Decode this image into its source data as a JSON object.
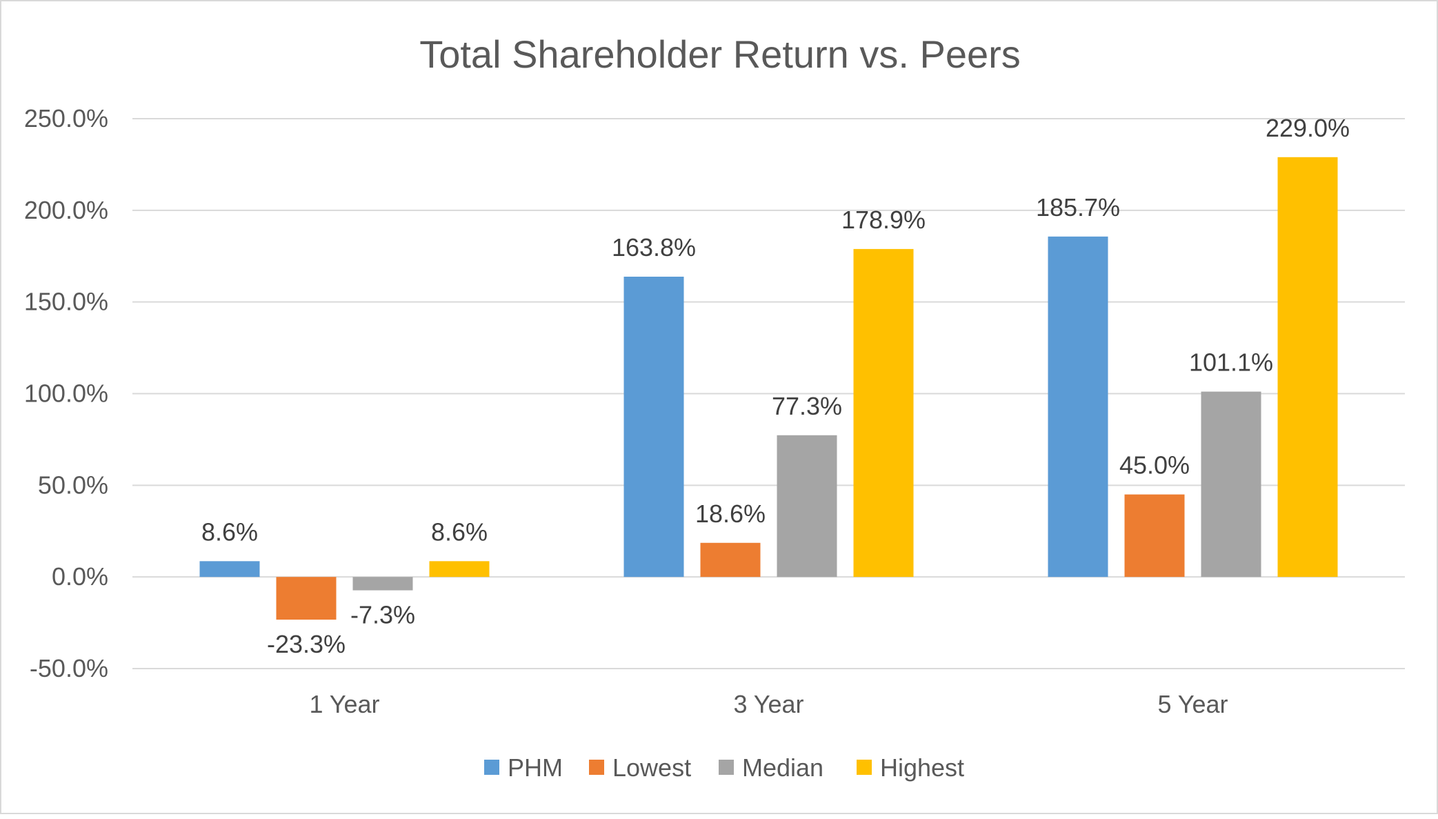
{
  "chart_data": {
    "type": "bar",
    "title": "Total Shareholder Return vs. Peers",
    "categories": [
      "1 Year",
      "3 Year",
      "5 Year"
    ],
    "series": [
      {
        "name": "PHM",
        "color": "#5b9bd5",
        "values": [
          8.6,
          163.8,
          185.7
        ],
        "labels": [
          "8.6%",
          "163.8%",
          "185.7%"
        ]
      },
      {
        "name": "Lowest",
        "color": "#ed7d31",
        "values": [
          -23.3,
          18.6,
          45.0
        ],
        "labels": [
          "-23.3%",
          "18.6%",
          "45.0%"
        ]
      },
      {
        "name": "Median",
        "color": "#a5a5a5",
        "values": [
          -7.3,
          77.3,
          101.1
        ],
        "labels": [
          "-7.3%",
          "77.3%",
          "101.1%"
        ]
      },
      {
        "name": "Highest",
        "color": "#ffc000",
        "values": [
          8.6,
          178.9,
          229.0
        ],
        "labels": [
          "8.6%",
          "178.9%",
          "229.0%"
        ]
      }
    ],
    "ylim": [
      -50,
      250
    ],
    "yticks": [
      -50,
      0,
      50,
      100,
      150,
      200,
      250
    ],
    "ytick_labels": [
      "-50.0%",
      "0.0%",
      "50.0%",
      "100.0%",
      "150.0%",
      "200.0%",
      "250.0%"
    ],
    "xlabel": "",
    "ylabel": "",
    "grid": true,
    "legend_position": "bottom"
  }
}
